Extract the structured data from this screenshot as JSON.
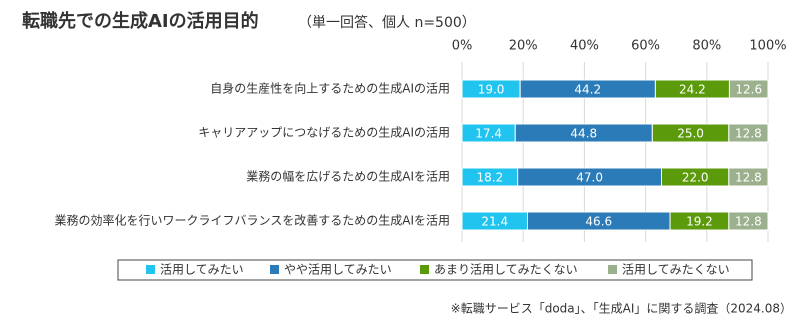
{
  "chart_data": {
    "type": "stacked-barh",
    "title": "転職先での生成AIの活用目的",
    "subtitle": "（単一回答、個人 n=500）",
    "note": "※転職サービス「doda」、「生成AI」に関する調査（2024.08）",
    "categories": [
      "自身の生産性を向上するための生成AIの活用",
      "キャリアアップにつなげるための生成AIの活用",
      "業務の幅を広げるための生成AIを活用",
      "業務の効率化を行いワークライフバランスを改善するための生成AIを活用"
    ],
    "series": [
      {
        "name": "活用してみたい",
        "color": "#21c4ef",
        "values": [
          19.0,
          17.4,
          18.2,
          21.4
        ],
        "value_labels": [
          "19.0",
          "17.4",
          "18.2",
          "21.4"
        ]
      },
      {
        "name": "やや活用してみたい",
        "color": "#2a7bb7",
        "values": [
          44.2,
          44.8,
          47.0,
          46.6
        ],
        "value_labels": [
          "44.2",
          "44.8",
          "47.0",
          "46.6"
        ]
      },
      {
        "name": "あまり活用してみたくない",
        "color": "#5b9a0b",
        "values": [
          24.2,
          25.0,
          22.0,
          19.2
        ],
        "value_labels": [
          "24.2",
          "25.0",
          "22.0",
          "19.2"
        ]
      },
      {
        "name": "活用してみたくない",
        "color": "#9bb08c",
        "values": [
          12.6,
          12.8,
          12.8,
          12.8
        ],
        "value_labels": [
          "12.6",
          "12.8",
          "12.8",
          "12.8"
        ]
      }
    ],
    "xlim": [
      0,
      100
    ],
    "xticks": [
      {
        "value": 0,
        "label": "0%"
      },
      {
        "value": 20,
        "label": "20%"
      },
      {
        "value": 40,
        "label": "40%"
      },
      {
        "value": 60,
        "label": "60%"
      },
      {
        "value": 80,
        "label": "80%"
      },
      {
        "value": 100,
        "label": "100%"
      }
    ],
    "grid": true
  }
}
